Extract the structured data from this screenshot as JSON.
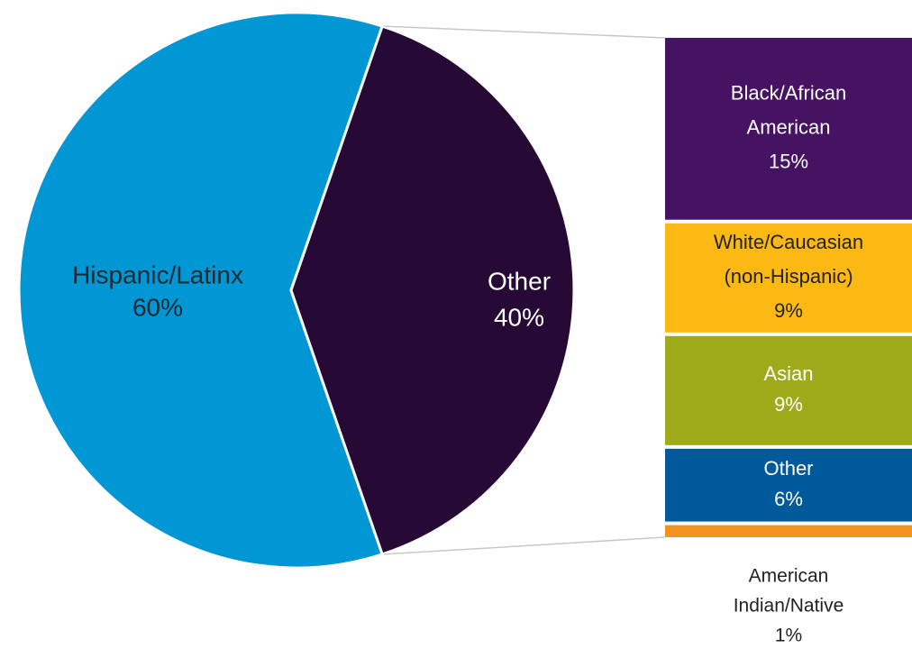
{
  "chart_data": {
    "type": "bar-of-pie",
    "pie": {
      "slices": [
        {
          "name": "Hispanic/Latinx",
          "value": 60,
          "label": "60%",
          "color": "#0196d4",
          "text_color": "#1b2a33"
        },
        {
          "name": "Other",
          "value": 40,
          "label": "40%",
          "color": "#260a35",
          "text_color": "#ffffff"
        }
      ]
    },
    "bar": {
      "segments": [
        {
          "name_lines": [
            "Black/African",
            "American"
          ],
          "value": 15,
          "label": "15%",
          "color": "#451362",
          "text_color": "#ffffff"
        },
        {
          "name_lines": [
            "White/Caucasian",
            "(non-Hispanic)"
          ],
          "value": 9,
          "label": "9%",
          "color": "#fcb813",
          "text_color": "#222222"
        },
        {
          "name_lines": [
            "Asian"
          ],
          "value": 9,
          "label": "9%",
          "color": "#9eaa1a",
          "text_color": "#ffffff"
        },
        {
          "name_lines": [
            "Other"
          ],
          "value": 6,
          "label": "6%",
          "color": "#005a9a",
          "text_color": "#ffffff"
        },
        {
          "name_lines": [
            "American",
            "Indian/Native"
          ],
          "value": 1,
          "label": "1%",
          "color": "#f29320",
          "text_color": "#222222",
          "label_outside": true
        }
      ]
    },
    "connector_color": "#c8c8c8"
  }
}
